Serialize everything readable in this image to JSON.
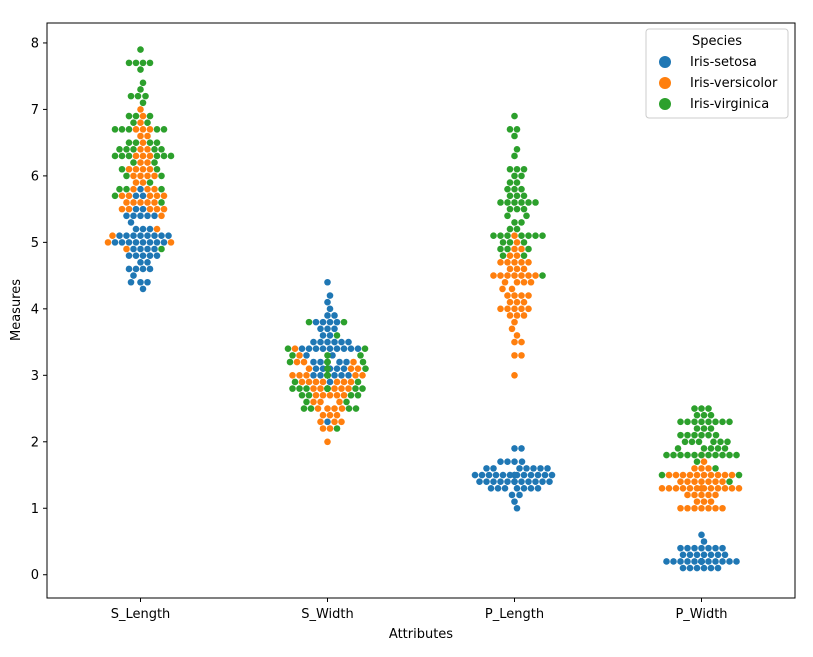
{
  "chart_data": {
    "type": "swarm",
    "title": "",
    "xlabel": "Attributes",
    "ylabel": "Measures",
    "categories": [
      "S_Length",
      "S_Width",
      "P_Length",
      "P_Width"
    ],
    "ylim": [
      -0.35,
      8.3
    ],
    "yticks": [
      0,
      1,
      2,
      3,
      4,
      5,
      6,
      7,
      8
    ],
    "grid": false,
    "legend": {
      "title": "Species",
      "placement": "top-right",
      "entries": [
        "Iris-setosa",
        "Iris-versicolor",
        "Iris-virginica"
      ]
    },
    "series": [
      {
        "name": "Iris-setosa",
        "color": "#1f77b4",
        "values": {
          "S_Length": [
            5.1,
            4.9,
            4.7,
            4.6,
            5.0,
            5.4,
            4.6,
            5.0,
            4.4,
            4.9,
            5.4,
            4.8,
            4.8,
            4.3,
            5.8,
            5.7,
            5.4,
            5.1,
            5.7,
            5.1,
            5.4,
            5.1,
            4.6,
            5.1,
            4.8,
            5.0,
            5.0,
            5.2,
            5.2,
            4.7,
            4.8,
            5.4,
            5.2,
            5.5,
            4.9,
            5.0,
            5.5,
            4.9,
            4.4,
            5.1,
            5.0,
            4.5,
            4.4,
            5.0,
            5.1,
            4.8,
            5.1,
            4.6,
            5.3,
            5.0
          ],
          "S_Width": [
            3.5,
            3.0,
            3.2,
            3.1,
            3.6,
            3.9,
            3.4,
            3.4,
            2.9,
            3.1,
            3.7,
            3.4,
            3.0,
            3.0,
            4.0,
            4.4,
            3.9,
            3.5,
            3.8,
            3.8,
            3.4,
            3.7,
            3.6,
            3.3,
            3.4,
            3.0,
            3.4,
            3.5,
            3.4,
            3.2,
            3.1,
            3.4,
            4.1,
            4.2,
            3.1,
            3.2,
            3.5,
            3.1,
            3.0,
            3.4,
            3.5,
            2.3,
            3.2,
            3.5,
            3.8,
            3.0,
            3.8,
            3.2,
            3.7,
            3.3
          ],
          "P_Length": [
            1.4,
            1.4,
            1.3,
            1.5,
            1.4,
            1.7,
            1.4,
            1.5,
            1.4,
            1.5,
            1.5,
            1.6,
            1.4,
            1.1,
            1.2,
            1.5,
            1.3,
            1.4,
            1.7,
            1.5,
            1.7,
            1.5,
            1.0,
            1.7,
            1.9,
            1.6,
            1.6,
            1.5,
            1.4,
            1.6,
            1.6,
            1.5,
            1.5,
            1.4,
            1.5,
            1.2,
            1.3,
            1.5,
            1.3,
            1.5,
            1.3,
            1.3,
            1.3,
            1.6,
            1.9,
            1.4,
            1.6,
            1.4,
            1.5,
            1.4
          ],
          "P_Width": [
            0.2,
            0.2,
            0.2,
            0.2,
            0.2,
            0.4,
            0.3,
            0.2,
            0.2,
            0.1,
            0.2,
            0.2,
            0.1,
            0.1,
            0.2,
            0.4,
            0.4,
            0.3,
            0.3,
            0.3,
            0.2,
            0.4,
            0.2,
            0.5,
            0.2,
            0.2,
            0.4,
            0.2,
            0.2,
            0.2,
            0.2,
            0.4,
            0.1,
            0.2,
            0.1,
            0.2,
            0.2,
            0.1,
            0.2,
            0.2,
            0.3,
            0.3,
            0.2,
            0.6,
            0.4,
            0.3,
            0.2,
            0.2,
            0.2,
            0.2
          ]
        }
      },
      {
        "name": "Iris-versicolor",
        "color": "#ff7f0e",
        "values": {
          "S_Length": [
            7.0,
            6.4,
            6.9,
            5.5,
            6.5,
            5.7,
            6.3,
            4.9,
            6.6,
            5.2,
            5.0,
            5.9,
            6.0,
            6.1,
            5.6,
            6.7,
            5.6,
            5.8,
            6.2,
            5.6,
            5.9,
            6.1,
            6.3,
            6.1,
            6.4,
            6.6,
            6.8,
            6.7,
            6.0,
            5.7,
            5.5,
            5.5,
            5.8,
            6.0,
            5.4,
            6.0,
            6.7,
            6.3,
            5.6,
            5.5,
            5.5,
            6.1,
            5.8,
            5.0,
            5.6,
            5.7,
            5.7,
            6.2,
            5.1,
            5.7
          ],
          "S_Width": [
            3.2,
            3.2,
            3.1,
            2.3,
            2.8,
            2.8,
            3.3,
            2.4,
            2.9,
            2.7,
            2.0,
            3.0,
            2.2,
            2.9,
            2.9,
            3.1,
            3.0,
            2.7,
            2.2,
            2.5,
            3.2,
            2.8,
            2.5,
            2.8,
            2.9,
            3.0,
            2.8,
            3.0,
            2.9,
            2.6,
            2.4,
            2.4,
            2.7,
            2.7,
            3.0,
            3.4,
            3.1,
            2.3,
            3.0,
            2.5,
            2.6,
            3.0,
            2.6,
            2.3,
            2.7,
            3.0,
            2.9,
            2.9,
            2.5,
            2.8
          ],
          "P_Length": [
            4.7,
            4.5,
            4.9,
            4.0,
            4.6,
            4.5,
            4.7,
            3.3,
            4.6,
            3.9,
            3.5,
            4.2,
            4.0,
            4.7,
            3.6,
            4.4,
            4.5,
            4.1,
            4.5,
            3.9,
            4.8,
            4.0,
            4.9,
            4.7,
            4.3,
            4.4,
            4.8,
            5.0,
            4.5,
            3.5,
            3.8,
            3.7,
            3.9,
            5.1,
            4.5,
            4.5,
            4.7,
            4.4,
            4.1,
            4.0,
            4.4,
            4.6,
            4.0,
            3.3,
            4.2,
            4.2,
            4.2,
            4.3,
            3.0,
            4.1
          ],
          "P_Width": [
            1.4,
            1.5,
            1.5,
            1.3,
            1.5,
            1.3,
            1.6,
            1.0,
            1.3,
            1.4,
            1.0,
            1.5,
            1.0,
            1.4,
            1.3,
            1.4,
            1.5,
            1.0,
            1.5,
            1.1,
            1.8,
            1.3,
            1.5,
            1.2,
            1.3,
            1.4,
            1.4,
            1.7,
            1.5,
            1.0,
            1.1,
            1.0,
            1.2,
            1.6,
            1.5,
            1.6,
            1.5,
            1.3,
            1.3,
            1.3,
            1.2,
            1.4,
            1.2,
            1.0,
            1.3,
            1.2,
            1.3,
            1.3,
            1.1,
            1.3
          ]
        }
      },
      {
        "name": "Iris-virginica",
        "color": "#2ca02c",
        "values": {
          "S_Length": [
            6.3,
            5.8,
            7.1,
            6.3,
            6.5,
            7.6,
            4.9,
            7.3,
            6.7,
            7.2,
            6.5,
            6.4,
            6.8,
            5.7,
            5.8,
            6.4,
            6.5,
            7.7,
            7.7,
            6.0,
            6.9,
            5.6,
            7.7,
            6.3,
            6.7,
            7.2,
            6.2,
            6.1,
            6.4,
            7.2,
            7.4,
            7.9,
            6.4,
            6.3,
            6.1,
            7.7,
            6.3,
            6.4,
            6.0,
            6.9,
            6.7,
            6.9,
            5.8,
            6.8,
            6.7,
            6.7,
            6.3,
            6.5,
            6.2,
            5.9
          ],
          "S_Width": [
            3.3,
            2.7,
            3.0,
            2.9,
            3.0,
            3.0,
            2.5,
            2.9,
            2.5,
            3.6,
            3.2,
            2.7,
            3.0,
            2.5,
            2.8,
            3.2,
            3.0,
            3.8,
            2.6,
            2.2,
            3.2,
            2.8,
            2.8,
            2.7,
            3.3,
            3.2,
            2.8,
            3.0,
            2.8,
            3.0,
            2.8,
            3.8,
            2.8,
            2.8,
            2.6,
            3.0,
            3.4,
            3.1,
            3.0,
            3.1,
            3.1,
            3.1,
            2.7,
            3.2,
            3.3,
            3.0,
            2.5,
            3.0,
            3.4,
            3.0
          ],
          "P_Length": [
            6.0,
            5.1,
            5.9,
            5.6,
            5.8,
            6.6,
            4.5,
            6.3,
            5.8,
            6.1,
            5.1,
            5.3,
            5.5,
            5.0,
            5.1,
            5.3,
            5.5,
            6.7,
            6.9,
            5.0,
            5.7,
            4.9,
            6.7,
            4.9,
            5.7,
            6.0,
            4.8,
            4.9,
            5.6,
            5.8,
            6.1,
            6.4,
            5.6,
            5.1,
            5.6,
            6.1,
            5.6,
            5.5,
            4.8,
            5.4,
            5.6,
            5.1,
            5.1,
            5.9,
            5.7,
            5.2,
            5.0,
            5.2,
            5.4,
            5.1
          ],
          "P_Width": [
            2.5,
            1.9,
            2.1,
            1.8,
            2.2,
            2.1,
            1.7,
            1.8,
            1.8,
            2.5,
            2.0,
            1.9,
            2.1,
            2.0,
            2.4,
            2.3,
            1.8,
            2.2,
            2.3,
            1.5,
            2.3,
            2.0,
            2.0,
            1.8,
            2.1,
            1.8,
            1.8,
            1.8,
            2.1,
            1.6,
            1.9,
            2.0,
            2.2,
            1.5,
            1.4,
            2.3,
            2.4,
            1.8,
            1.8,
            2.1,
            2.4,
            2.3,
            1.9,
            2.3,
            2.5,
            2.3,
            1.9,
            2.0,
            2.3,
            1.8
          ]
        }
      }
    ]
  }
}
